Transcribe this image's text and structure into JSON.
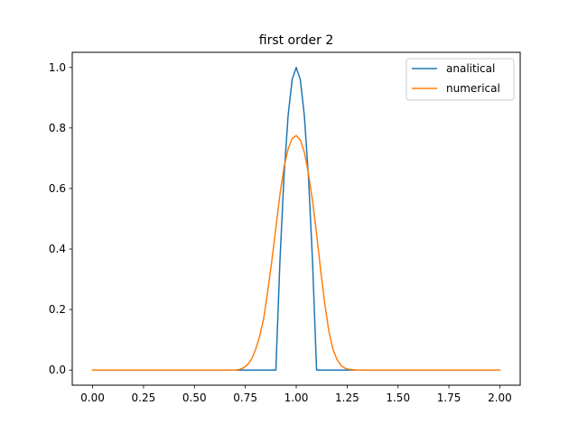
{
  "chart_data": {
    "type": "line",
    "title": "first order 2",
    "xlabel": "",
    "ylabel": "",
    "xlim": [
      -0.1,
      2.1
    ],
    "ylim": [
      -0.05,
      1.05
    ],
    "grid": false,
    "legend_position": "top-right",
    "x_ticks": [
      0.0,
      0.25,
      0.5,
      0.75,
      1.0,
      1.25,
      1.5,
      1.75,
      2.0
    ],
    "x_tick_labels": [
      "0.00",
      "0.25",
      "0.50",
      "0.75",
      "1.00",
      "1.25",
      "1.50",
      "1.75",
      "2.00"
    ],
    "y_ticks": [
      0.0,
      0.2,
      0.4,
      0.6,
      0.8,
      1.0
    ],
    "y_tick_labels": [
      "0.0",
      "0.2",
      "0.4",
      "0.6",
      "0.8",
      "1.0"
    ],
    "series": [
      {
        "name": "analitical",
        "color": "#1f77b4",
        "x": [
          0.0,
          0.9,
          0.9,
          0.92,
          0.94,
          0.96,
          0.98,
          1.0,
          1.02,
          1.04,
          1.06,
          1.08,
          1.1,
          1.1,
          2.0
        ],
        "y": [
          0.0,
          0.0,
          0.0,
          0.36,
          0.64,
          0.84,
          0.96,
          1.0,
          0.96,
          0.84,
          0.64,
          0.36,
          0.0,
          0.0,
          0.0
        ]
      },
      {
        "name": "numerical",
        "color": "#ff7f0e",
        "x": [
          0.0,
          0.7,
          0.72,
          0.74,
          0.76,
          0.78,
          0.8,
          0.82,
          0.84,
          0.86,
          0.88,
          0.9,
          0.92,
          0.94,
          0.96,
          0.98,
          1.0,
          1.02,
          1.04,
          1.06,
          1.08,
          1.1,
          1.12,
          1.14,
          1.16,
          1.18,
          1.2,
          1.22,
          1.24,
          1.26,
          1.3,
          2.0
        ],
        "y": [
          0.0,
          0.0,
          0.002,
          0.007,
          0.017,
          0.035,
          0.067,
          0.11,
          0.17,
          0.26,
          0.36,
          0.47,
          0.58,
          0.67,
          0.73,
          0.765,
          0.775,
          0.76,
          0.72,
          0.65,
          0.56,
          0.45,
          0.33,
          0.22,
          0.13,
          0.07,
          0.035,
          0.015,
          0.006,
          0.002,
          0.0,
          0.0
        ]
      }
    ]
  }
}
